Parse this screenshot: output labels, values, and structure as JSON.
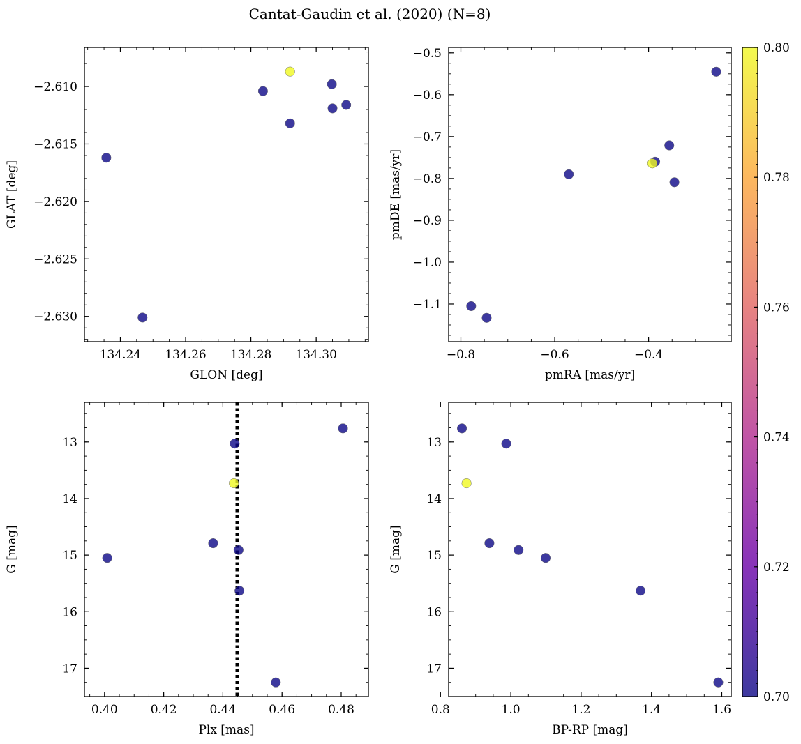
{
  "title": "Cantat-Gaudin et al. (2020) (N=8)",
  "colormap": {
    "name": "plasma",
    "stops": [
      "#0d0887",
      "#6a00a8",
      "#b12a90",
      "#e16462",
      "#fca636",
      "#f0f921"
    ],
    "range": [
      0.7,
      0.8
    ],
    "ticks": [
      0.7,
      0.72,
      0.74,
      0.76,
      0.78,
      0.8
    ],
    "tick_labels": [
      "0.70",
      "0.72",
      "0.74",
      "0.76",
      "0.78",
      "0.80"
    ]
  },
  "chart_data": [
    {
      "type": "scatter",
      "id": "glon-glat",
      "xlabel": "GLON [deg]",
      "ylabel": "GLAT [deg]",
      "xlim": [
        134.229,
        134.316
      ],
      "ylim": [
        -2.6322,
        -2.6066
      ],
      "xticks": [
        134.24,
        134.26,
        134.28,
        134.3
      ],
      "xtick_labels": [
        "134.24",
        "134.26",
        "134.28",
        "134.30"
      ],
      "xminor": 0.005,
      "yticks": [
        -2.61,
        -2.615,
        -2.62,
        -2.625,
        -2.63
      ],
      "ytick_labels": [
        "−2.610",
        "−2.615",
        "−2.620",
        "−2.625",
        "−2.630"
      ],
      "yminor": 0.001,
      "points": [
        {
          "x": 134.2357,
          "y": -2.6162,
          "c": 0.7
        },
        {
          "x": 134.2468,
          "y": -2.6301,
          "c": 0.7
        },
        {
          "x": 134.2837,
          "y": -2.6104,
          "c": 0.7
        },
        {
          "x": 134.292,
          "y": -2.6132,
          "c": 0.7
        },
        {
          "x": 134.292,
          "y": -2.6087,
          "c": 0.8
        },
        {
          "x": 134.3048,
          "y": -2.6098,
          "c": 0.7
        },
        {
          "x": 134.305,
          "y": -2.6119,
          "c": 0.7
        },
        {
          "x": 134.3092,
          "y": -2.6116,
          "c": 0.7
        }
      ]
    },
    {
      "type": "scatter",
      "id": "pmra-pmde",
      "xlabel": "pmRA [mas/yr]",
      "ylabel": "pmDE [mas/yr]",
      "xlim": [
        -0.826,
        -0.224
      ],
      "ylim": [
        -1.19,
        -0.487
      ],
      "xticks": [
        -0.8,
        -0.6,
        -0.4
      ],
      "xtick_labels": [
        "−0.8",
        "−0.6",
        "−0.4"
      ],
      "xminor": 0.05,
      "yticks": [
        -0.5,
        -0.6,
        -0.7,
        -0.8,
        -0.9,
        -1.0,
        -1.1
      ],
      "ytick_labels": [
        "−0.5",
        "−0.6",
        "−0.7",
        "−0.8",
        "−0.9",
        "−1.0",
        "−1.1"
      ],
      "yminor": 0.025,
      "points": [
        {
          "x": -0.778,
          "y": -1.105,
          "c": 0.7
        },
        {
          "x": -0.745,
          "y": -1.133,
          "c": 0.7
        },
        {
          "x": -0.57,
          "y": -0.79,
          "c": 0.7
        },
        {
          "x": -0.386,
          "y": -0.76,
          "c": 0.7
        },
        {
          "x": -0.392,
          "y": -0.764,
          "c": 0.8
        },
        {
          "x": -0.356,
          "y": -0.721,
          "c": 0.7
        },
        {
          "x": -0.345,
          "y": -0.809,
          "c": 0.7
        },
        {
          "x": -0.256,
          "y": -0.545,
          "c": 0.7
        }
      ]
    },
    {
      "type": "scatter",
      "id": "plx-g",
      "xlabel": "Plx [mas]",
      "ylabel": "G [mag]",
      "xlim": [
        0.3932,
        0.4892
      ],
      "ylim": [
        17.5,
        12.3
      ],
      "y_inverted": true,
      "xticks": [
        0.4,
        0.42,
        0.44,
        0.46,
        0.48
      ],
      "xtick_labels": [
        "0.40",
        "0.42",
        "0.44",
        "0.46",
        "0.48"
      ],
      "xminor": 0.005,
      "yticks": [
        13,
        14,
        15,
        16,
        17
      ],
      "ytick_labels": [
        "13",
        "14",
        "15",
        "16",
        "17"
      ],
      "yminor": 0.25,
      "vline": 0.4448,
      "points": [
        {
          "x": 0.4009,
          "y": 15.05,
          "c": 0.7
        },
        {
          "x": 0.4367,
          "y": 14.79,
          "c": 0.7
        },
        {
          "x": 0.4437,
          "y": 13.73,
          "c": 0.8
        },
        {
          "x": 0.444,
          "y": 13.03,
          "c": 0.7
        },
        {
          "x": 0.4453,
          "y": 14.91,
          "c": 0.7
        },
        {
          "x": 0.4456,
          "y": 15.63,
          "c": 0.7
        },
        {
          "x": 0.4579,
          "y": 17.25,
          "c": 0.7
        },
        {
          "x": 0.4806,
          "y": 12.76,
          "c": 0.7
        }
      ]
    },
    {
      "type": "scatter",
      "id": "bprp-g",
      "xlabel": "BP-RP [mag]",
      "ylabel": "G [mag]",
      "xlim": [
        0.8232,
        1.6268
      ],
      "ylim": [
        17.5,
        12.3
      ],
      "y_inverted": true,
      "xticks": [
        0.8,
        1.0,
        1.2,
        1.4,
        1.6
      ],
      "xtick_labels": [
        "0.8",
        "1.0",
        "1.2",
        "1.4",
        "1.6"
      ],
      "xminor": 0.05,
      "yticks": [
        13,
        14,
        15,
        16,
        17
      ],
      "ytick_labels": [
        "13",
        "14",
        "15",
        "16",
        "17"
      ],
      "yminor": 0.25,
      "points": [
        {
          "x": 0.861,
          "y": 12.76,
          "c": 0.7
        },
        {
          "x": 0.874,
          "y": 13.73,
          "c": 0.8
        },
        {
          "x": 0.939,
          "y": 14.79,
          "c": 0.7
        },
        {
          "x": 0.987,
          "y": 13.03,
          "c": 0.7
        },
        {
          "x": 1.022,
          "y": 14.91,
          "c": 0.7
        },
        {
          "x": 1.099,
          "y": 15.05,
          "c": 0.7
        },
        {
          "x": 1.369,
          "y": 15.63,
          "c": 0.7
        },
        {
          "x": 1.59,
          "y": 17.25,
          "c": 0.7
        }
      ]
    }
  ]
}
